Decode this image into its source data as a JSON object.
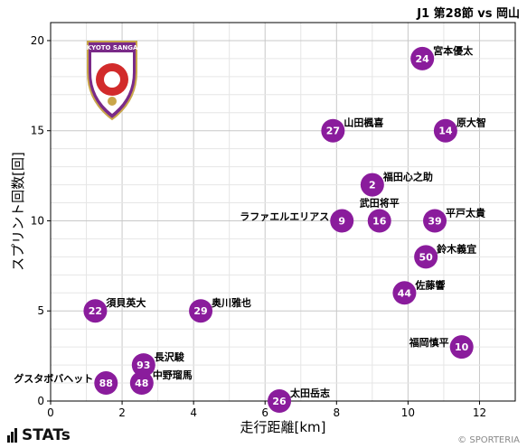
{
  "chart_data": {
    "type": "scatter",
    "title": "J1 第28節 vs 岡山",
    "xlabel": "走行距離[km]",
    "ylabel": "スプリント回数[回]",
    "xlim": [
      0,
      13
    ],
    "ylim": [
      0,
      21
    ],
    "xticks": [
      0,
      2,
      4,
      6,
      8,
      10,
      12
    ],
    "yticks": [
      0,
      5,
      10,
      15,
      20
    ],
    "grid": true,
    "marker_color": "#8a1c9c",
    "points": [
      {
        "number": "24",
        "name": "宮本優太",
        "x": 10.4,
        "y": 19,
        "label_side": "right"
      },
      {
        "number": "27",
        "name": "山田楓喜",
        "x": 7.9,
        "y": 15,
        "label_side": "right"
      },
      {
        "number": "14",
        "name": "原大智",
        "x": 11.05,
        "y": 15,
        "label_side": "right"
      },
      {
        "number": "2",
        "name": "福田心之助",
        "x": 9.0,
        "y": 12,
        "label_side": "right"
      },
      {
        "number": "9",
        "name": "ラファエルエリアス",
        "x": 8.15,
        "y": 10,
        "label_side": "left"
      },
      {
        "number": "16",
        "name": "武田将平",
        "x": 9.2,
        "y": 10,
        "label_side": "top"
      },
      {
        "number": "39",
        "name": "平戸太貴",
        "x": 10.75,
        "y": 10,
        "label_side": "right"
      },
      {
        "number": "50",
        "name": "鈴木義宜",
        "x": 10.5,
        "y": 8,
        "label_side": "right"
      },
      {
        "number": "44",
        "name": "佐藤響",
        "x": 9.9,
        "y": 6,
        "label_side": "right"
      },
      {
        "number": "22",
        "name": "須貝英大",
        "x": 1.25,
        "y": 5,
        "label_side": "right"
      },
      {
        "number": "29",
        "name": "奥川雅也",
        "x": 4.2,
        "y": 5,
        "label_side": "right"
      },
      {
        "number": "10",
        "name": "福岡慎平",
        "x": 11.5,
        "y": 3,
        "label_side": "left"
      },
      {
        "number": "93",
        "name": "長沢駿",
        "x": 2.6,
        "y": 2,
        "label_side": "right"
      },
      {
        "number": "48",
        "name": "中野瑠馬",
        "x": 2.55,
        "y": 1,
        "label_side": "right"
      },
      {
        "number": "88",
        "name": "グスタボバヘット",
        "x": 1.55,
        "y": 1,
        "label_side": "left"
      },
      {
        "number": "26",
        "name": "太田岳志",
        "x": 6.4,
        "y": 0,
        "label_side": "right"
      }
    ]
  },
  "logo": {
    "text": "KYOTO SANGA"
  },
  "footer": {
    "brand": "STATs",
    "copyright": "© SPORTERIA"
  }
}
